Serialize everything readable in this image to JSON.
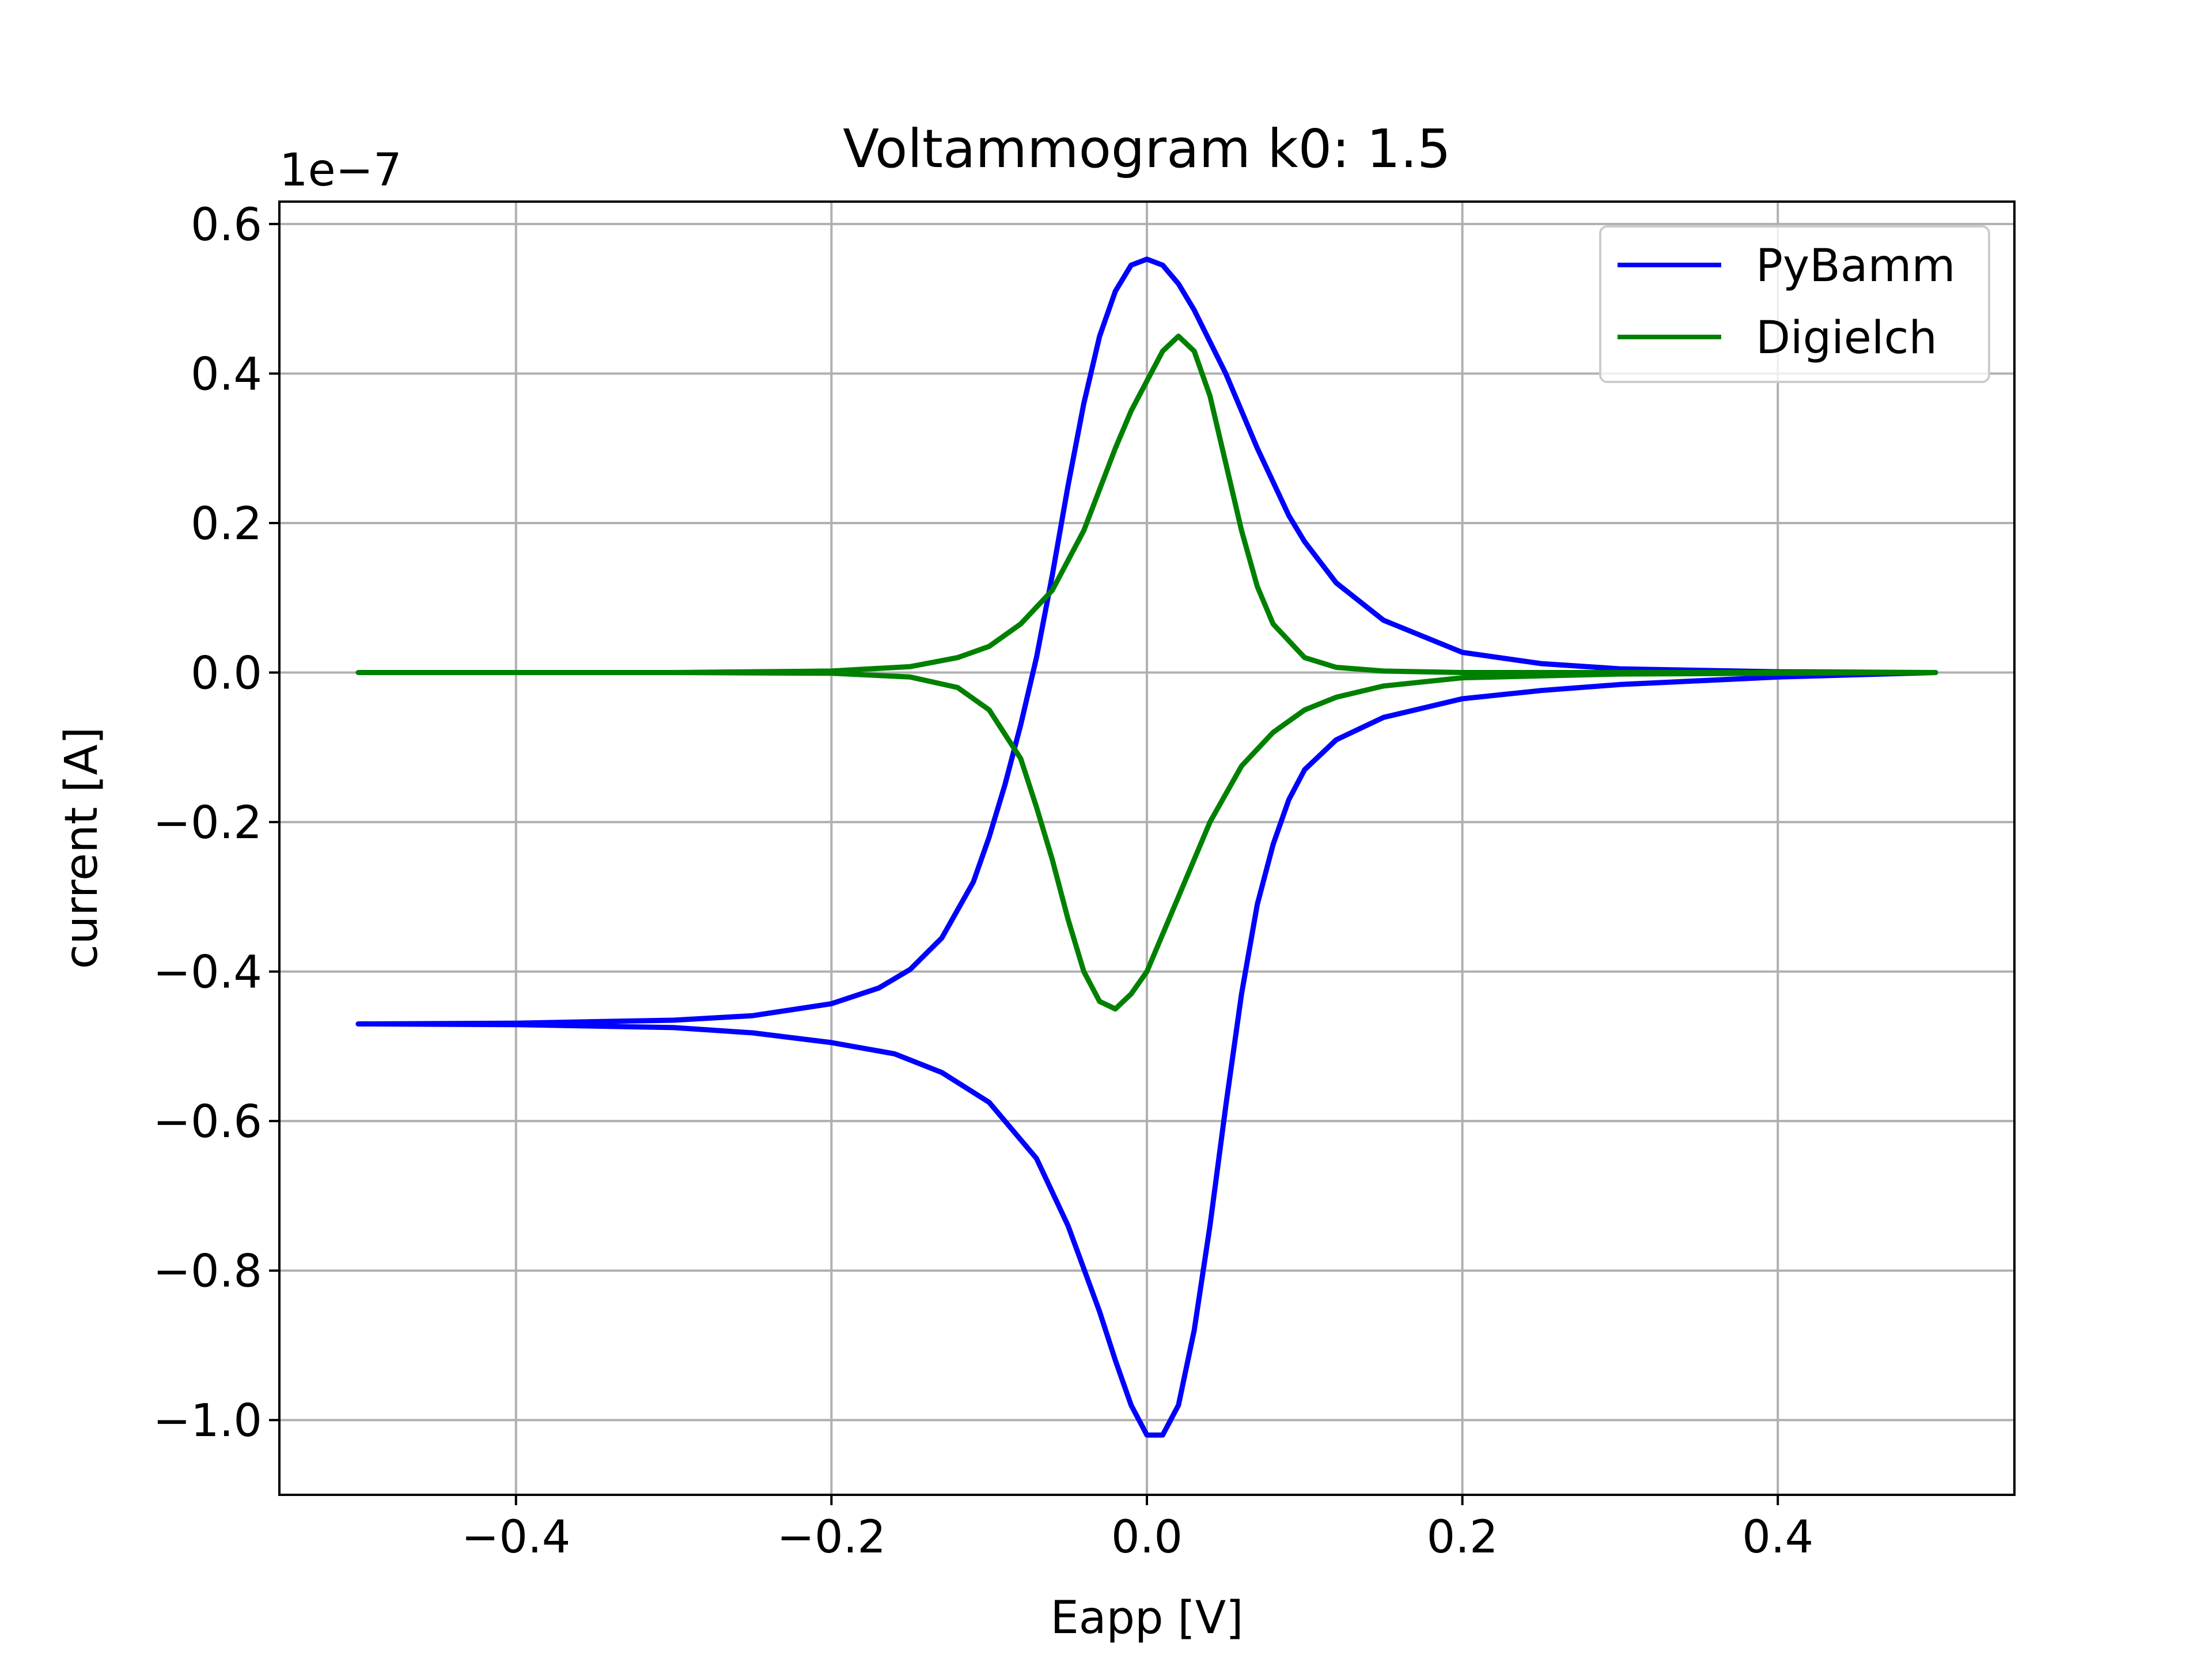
{
  "chart_data": {
    "type": "line",
    "title": "Voltammogram k0: 1.5",
    "xlabel": "Eapp [V]",
    "ylabel": "current [A]",
    "y_offset_label": "1e−7",
    "xlim": [
      -0.55,
      0.55
    ],
    "ylim": [
      -1.1,
      0.63
    ],
    "x_ticks": [
      -0.4,
      -0.2,
      0.0,
      0.2,
      0.4
    ],
    "x_tick_labels": [
      "−0.4",
      "−0.2",
      "0.0",
      "0.2",
      "0.4"
    ],
    "y_ticks": [
      0.6,
      0.4,
      0.2,
      0.0,
      -0.2,
      -0.4,
      -0.6,
      -0.8,
      -1.0
    ],
    "y_tick_labels": [
      "0.6",
      "0.4",
      "0.2",
      "0.0",
      "−0.2",
      "−0.4",
      "−0.6",
      "−0.8",
      "−1.0"
    ],
    "grid": true,
    "legend_position": "top-right",
    "series": [
      {
        "name": "PyBamm",
        "color": "#0000ff",
        "x": [
          -0.5,
          -0.4,
          -0.3,
          -0.25,
          -0.2,
          -0.17,
          -0.15,
          -0.13,
          -0.11,
          -0.1,
          -0.09,
          -0.08,
          -0.07,
          -0.06,
          -0.05,
          -0.04,
          -0.03,
          -0.02,
          -0.01,
          0.0,
          0.01,
          0.02,
          0.03,
          0.05,
          0.07,
          0.09,
          0.1,
          0.12,
          0.15,
          0.2,
          0.25,
          0.3,
          0.4,
          0.5,
          0.4,
          0.3,
          0.25,
          0.2,
          0.15,
          0.12,
          0.1,
          0.09,
          0.08,
          0.07,
          0.06,
          0.05,
          0.04,
          0.03,
          0.02,
          0.01,
          0.0,
          -0.01,
          -0.02,
          -0.03,
          -0.05,
          -0.07,
          -0.1,
          -0.13,
          -0.16,
          -0.2,
          -0.25,
          -0.3,
          -0.4,
          -0.5
        ],
        "y": [
          -0.47,
          -0.469,
          -0.465,
          -0.459,
          -0.443,
          -0.422,
          -0.397,
          -0.355,
          -0.28,
          -0.22,
          -0.15,
          -0.07,
          0.02,
          0.13,
          0.25,
          0.36,
          0.45,
          0.51,
          0.545,
          0.553,
          0.545,
          0.52,
          0.485,
          0.4,
          0.3,
          0.21,
          0.175,
          0.12,
          0.07,
          0.027,
          0.012,
          0.005,
          0.001,
          0.0,
          -0.006,
          -0.016,
          -0.024,
          -0.035,
          -0.06,
          -0.09,
          -0.13,
          -0.17,
          -0.23,
          -0.31,
          -0.43,
          -0.58,
          -0.74,
          -0.88,
          -0.98,
          -1.02,
          -1.02,
          -0.98,
          -0.92,
          -0.855,
          -0.74,
          -0.65,
          -0.575,
          -0.535,
          -0.51,
          -0.495,
          -0.482,
          -0.475,
          -0.471,
          -0.47
        ]
      },
      {
        "name": "Digielch",
        "color": "#008000",
        "x": [
          -0.5,
          -0.3,
          -0.2,
          -0.15,
          -0.12,
          -0.1,
          -0.08,
          -0.06,
          -0.04,
          -0.02,
          -0.01,
          0.0,
          0.01,
          0.02,
          0.03,
          0.04,
          0.05,
          0.06,
          0.07,
          0.08,
          0.1,
          0.12,
          0.15,
          0.2,
          0.3,
          0.5,
          0.3,
          0.2,
          0.15,
          0.12,
          0.1,
          0.08,
          0.06,
          0.04,
          0.02,
          0.0,
          -0.01,
          -0.02,
          -0.03,
          -0.04,
          -0.05,
          -0.06,
          -0.07,
          -0.08,
          -0.1,
          -0.12,
          -0.15,
          -0.2,
          -0.3,
          -0.5
        ],
        "y": [
          0.0,
          0.0,
          0.002,
          0.008,
          0.02,
          0.035,
          0.065,
          0.11,
          0.19,
          0.3,
          0.35,
          0.39,
          0.43,
          0.45,
          0.43,
          0.37,
          0.28,
          0.19,
          0.115,
          0.065,
          0.02,
          0.007,
          0.002,
          0.0,
          0.0,
          0.0,
          -0.002,
          -0.007,
          -0.018,
          -0.033,
          -0.05,
          -0.08,
          -0.125,
          -0.2,
          -0.3,
          -0.4,
          -0.43,
          -0.45,
          -0.44,
          -0.4,
          -0.33,
          -0.25,
          -0.18,
          -0.115,
          -0.05,
          -0.02,
          -0.006,
          -0.001,
          0.0,
          0.0
        ]
      }
    ]
  }
}
